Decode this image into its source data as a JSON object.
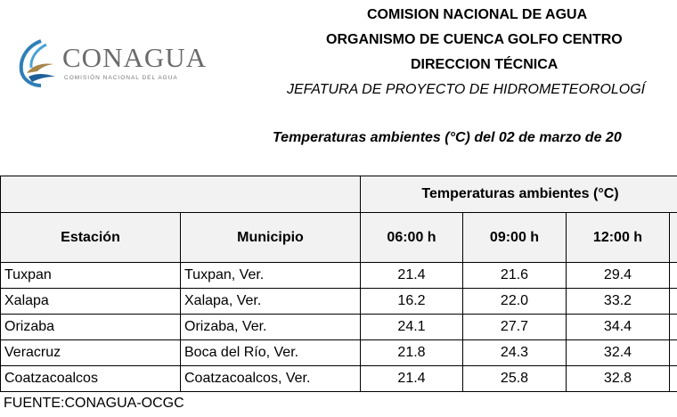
{
  "header": {
    "line1": "COMISION NACIONAL DE AGUA",
    "line2": "ORGANISMO DE CUENCA GOLFO CENTRO",
    "line3": "DIRECCION TÉCNICA",
    "line4": "JEFATURA DE PROYECTO DE HIDROMETEOROLOGÍ"
  },
  "logo": {
    "name": "CONAGUA",
    "subtitle": "COMISIÓN NACIONAL DEL AGUA",
    "icon": "conagua-logo-icon"
  },
  "caption": "Temperaturas ambientes (°C) del 02 de marzo de 20",
  "table": {
    "group_header": "Temperaturas ambientes (°C)",
    "columns": [
      "Estación",
      "Municipio",
      "06:00 h",
      "09:00 h",
      "12:00 h"
    ],
    "rows": [
      {
        "estacion": "Tuxpan",
        "municipio": "Tuxpan, Ver.",
        "t0600": "21.4",
        "t0900": "21.6",
        "t1200": "29.4"
      },
      {
        "estacion": "Xalapa",
        "municipio": "Xalapa, Ver.",
        "t0600": "16.2",
        "t0900": "22.0",
        "t1200": "33.2"
      },
      {
        "estacion": "Orizaba",
        "municipio": "Orizaba, Ver.",
        "t0600": "24.1",
        "t0900": "27.7",
        "t1200": "34.4"
      },
      {
        "estacion": "Veracruz",
        "municipio": "Boca del Río, Ver.",
        "t0600": "21.8",
        "t0900": "24.3",
        "t1200": "32.4"
      },
      {
        "estacion": "Coatzacoalcos",
        "municipio": "Coatzacoalcos, Ver.",
        "t0600": "21.4",
        "t0900": "25.8",
        "t1200": "32.8"
      }
    ]
  },
  "source": "FUENTE:CONAGUA-OCGC"
}
